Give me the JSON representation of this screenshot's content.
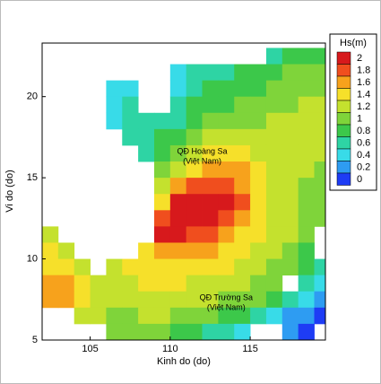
{
  "chart_data": {
    "type": "heatmap",
    "x_label": "Kinh do (do)",
    "y_label": "Vi do (do)",
    "xlim": [
      102,
      119.7
    ],
    "ylim": [
      5,
      23.3
    ],
    "xticks": [
      105,
      110,
      115
    ],
    "yticks": [
      5,
      10,
      15,
      20
    ],
    "x": [
      102.5,
      103.5,
      104.5,
      105.5,
      106.5,
      107.5,
      108.5,
      109.5,
      110.5,
      111.5,
      112.5,
      113.5,
      114.5,
      115.5,
      116.5,
      117.5,
      118.5,
      119.5
    ],
    "y": [
      22.5,
      21.5,
      20.5,
      19.5,
      18.5,
      17.5,
      16.5,
      15.5,
      14.5,
      13.5,
      12.5,
      11.5,
      10.5,
      9.5,
      8.5,
      7.5,
      6.5,
      5.5
    ],
    "z": [
      [
        null,
        null,
        null,
        null,
        null,
        null,
        null,
        null,
        null,
        null,
        null,
        null,
        null,
        null,
        0.7,
        0.8,
        0.9,
        0.9
      ],
      [
        null,
        null,
        null,
        null,
        null,
        null,
        null,
        null,
        0.5,
        0.6,
        0.7,
        0.7,
        0.8,
        0.8,
        0.9,
        1.0,
        1.0,
        1.0
      ],
      [
        null,
        null,
        null,
        null,
        0.4,
        0.5,
        null,
        null,
        0.5,
        0.7,
        0.8,
        0.8,
        0.9,
        0.9,
        1.0,
        1.0,
        1.1,
        1.1
      ],
      [
        null,
        null,
        null,
        null,
        0.5,
        0.6,
        null,
        null,
        0.6,
        0.8,
        0.9,
        0.9,
        1.0,
        1.0,
        1.1,
        1.1,
        1.2,
        1.2
      ],
      [
        null,
        null,
        null,
        null,
        0.5,
        0.6,
        0.6,
        0.6,
        0.7,
        0.8,
        1.0,
        1.0,
        1.1,
        1.1,
        1.2,
        1.2,
        1.2,
        1.2
      ],
      [
        null,
        null,
        null,
        null,
        null,
        0.6,
        0.7,
        0.8,
        0.9,
        1.0,
        1.2,
        1.2,
        1.2,
        1.2,
        1.2,
        1.2,
        1.2,
        1.2
      ],
      [
        null,
        null,
        null,
        null,
        null,
        null,
        0.7,
        0.9,
        1.1,
        1.2,
        1.4,
        1.5,
        1.4,
        1.3,
        1.2,
        1.2,
        1.2,
        1.2
      ],
      [
        null,
        null,
        null,
        null,
        null,
        null,
        null,
        1.0,
        1.3,
        1.5,
        1.7,
        1.7,
        1.6,
        1.4,
        1.3,
        1.2,
        1.2,
        1.1
      ],
      [
        null,
        null,
        null,
        null,
        null,
        null,
        null,
        1.3,
        1.6,
        1.9,
        1.9,
        1.9,
        1.7,
        1.5,
        1.3,
        1.2,
        1.1,
        1.0
      ],
      [
        null,
        null,
        null,
        null,
        null,
        null,
        null,
        1.5,
        2.0,
        2.1,
        2.1,
        2.0,
        1.8,
        1.5,
        1.3,
        1.2,
        1.1,
        1.0
      ],
      [
        null,
        null,
        null,
        null,
        null,
        null,
        null,
        1.8,
        2.1,
        2.1,
        2.1,
        1.9,
        1.7,
        1.5,
        1.3,
        1.2,
        1.1,
        1.0
      ],
      [
        1.3,
        null,
        null,
        null,
        null,
        null,
        null,
        2.0,
        2.0,
        1.9,
        1.8,
        1.6,
        1.5,
        1.4,
        1.3,
        1.2,
        1.1,
        null
      ],
      [
        1.5,
        1.3,
        null,
        null,
        null,
        null,
        1.5,
        1.7,
        1.7,
        1.6,
        1.6,
        1.5,
        1.4,
        1.3,
        1.2,
        1.1,
        0.9,
        null
      ],
      [
        1.5,
        1.4,
        1.2,
        null,
        1.2,
        1.4,
        1.5,
        1.5,
        1.5,
        1.5,
        1.4,
        1.4,
        1.3,
        1.2,
        1.1,
        1.0,
        0.8,
        0.7
      ],
      [
        1.6,
        1.6,
        1.5,
        1.3,
        1.3,
        1.3,
        1.4,
        1.4,
        1.4,
        1.3,
        1.3,
        1.2,
        1.2,
        1.1,
        1.0,
        null,
        0.6,
        0.5
      ],
      [
        1.7,
        1.6,
        1.4,
        1.3,
        1.2,
        1.2,
        1.3,
        1.3,
        1.3,
        1.2,
        1.2,
        1.1,
        1.1,
        1.0,
        0.9,
        0.7,
        0.4,
        0.3
      ],
      [
        null,
        null,
        1.2,
        1.2,
        1.1,
        1.1,
        1.2,
        1.2,
        1.1,
        1.1,
        1.0,
        0.9,
        0.8,
        0.6,
        0.5,
        0.3,
        0.2,
        0.1
      ],
      [
        null,
        null,
        null,
        null,
        1.0,
        1.0,
        1.0,
        1.0,
        0.9,
        0.8,
        0.7,
        0.6,
        0.4,
        null,
        null,
        0.2,
        0.1,
        null
      ]
    ],
    "legend_title": "Hs(m)",
    "levels": [
      2,
      1.8,
      1.6,
      1.4,
      1.2,
      1,
      0.8,
      0.6,
      0.4,
      0.2,
      0
    ],
    "level_colors": [
      "#d7191c",
      "#f04e1e",
      "#f7a21c",
      "#f6e02a",
      "#c4e12e",
      "#7fd43a",
      "#3cc84a",
      "#2ed4a4",
      "#38dbe8",
      "#2e9cf2",
      "#1e3cf5"
    ],
    "annotations": [
      {
        "lines": [
          "QĐ Hoàng Sa",
          "(Việt Nam)"
        ],
        "x": 112,
        "y": 16.6
      },
      {
        "lines": [
          "QĐ Trường Sa",
          "(Việt Nam)"
        ],
        "x": 113.5,
        "y": 7.6
      }
    ]
  }
}
